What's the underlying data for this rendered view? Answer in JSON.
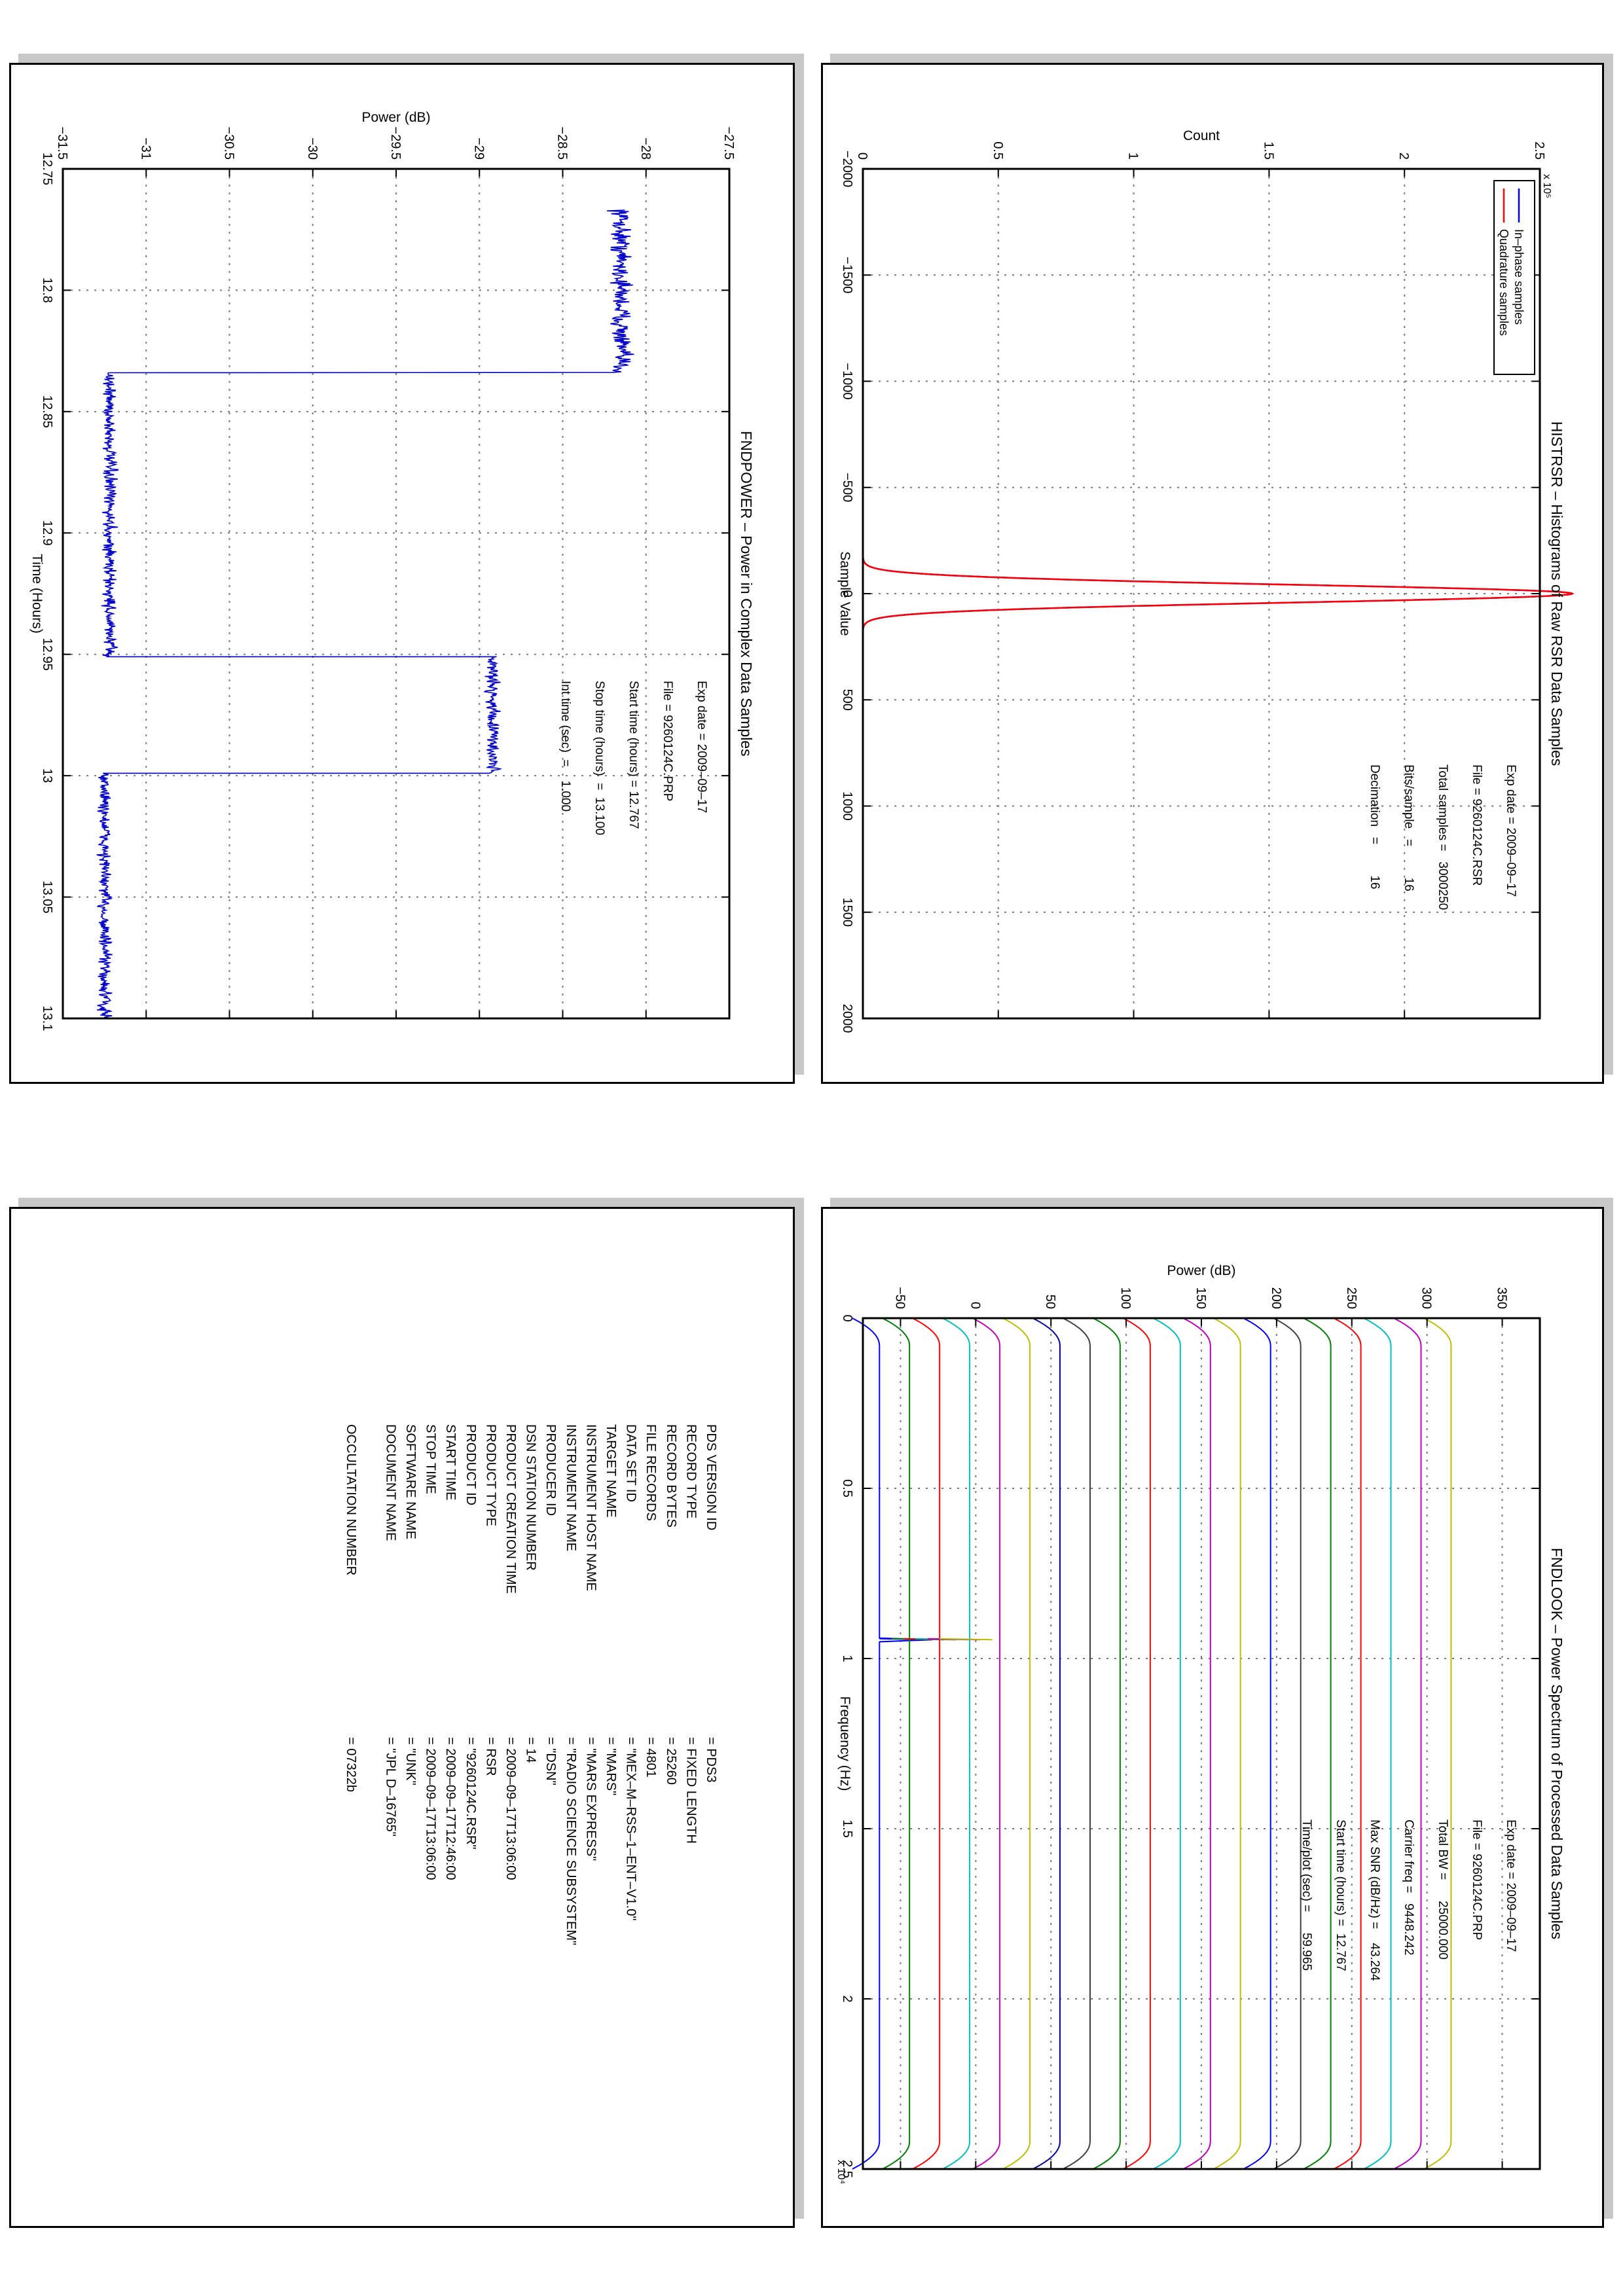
{
  "histrsr": {
    "title": "HISTRSR – Histograms of Raw RSR Data Samples",
    "xlabel": "Sample Value",
    "ylabel": "Count",
    "yexponent": "x 10⁵",
    "legend": [
      "In–phase samples",
      "Quadrature samples"
    ],
    "info": [
      "Exp date = 2009–09–17",
      "File = 9260124C.RSR",
      "Total samples =   3000250",
      "Bits/sample   =         16",
      "Decimation   =         16"
    ],
    "colors": {
      "inphase": "#0000ff",
      "quadrature": "#ff0000"
    }
  },
  "fndpower": {
    "title": "FNDPOWER – Power in Complex Data Samples",
    "xlabel": "Time (Hours)",
    "ylabel": "Power (dB)",
    "info": [
      "Exp date = 2009–09–17",
      "File = 9260124C.PRP",
      "Start time (hours) = 12.767",
      "Stop time (hours)  =  13.100",
      "Int time (sec)  =    1.000"
    ],
    "color": "#0000cc"
  },
  "fndlook": {
    "title": "FNDLOOK – Power Spectrum of Processed Data Samples",
    "xlabel": "Frequency (Hz)",
    "ylabel": "Power (dB)",
    "xexponent": "x 10⁴",
    "info": [
      "Exp date = 2009–09–17",
      "File = 9260124C.PRP",
      "Total BW =      25000.000",
      "Carrier freq =   9448.242",
      "Max SNR (dB/Hz) =    43.264",
      "Start time (hours) =  12.767",
      "Time/plot (sec) =      59.965"
    ]
  },
  "label": {
    "rows": [
      {
        "key": "PDS VERSION ID",
        "value": "= PDS3"
      },
      {
        "key": "RECORD TYPE",
        "value": "= FIXED LENGTH"
      },
      {
        "key": "RECORD BYTES",
        "value": "= 25260"
      },
      {
        "key": "FILE RECORDS",
        "value": "= 4801"
      },
      {
        "key": "DATA SET ID",
        "value": "= \"MEX–M–RSS–1–ENT–V1.0\""
      },
      {
        "key": "TARGET NAME",
        "value": "= \"MARS\""
      },
      {
        "key": "INSTRUMENT HOST NAME",
        "value": "= \"MARS EXPRESS\""
      },
      {
        "key": "INSTRUMENT NAME",
        "value": "= \"RADIO SCIENCE SUBSYSTEM\""
      },
      {
        "key": "PRODUCER ID",
        "value": "= \"DSN\""
      },
      {
        "key": "DSN STATION NUMBER",
        "value": "= 14"
      },
      {
        "key": "PRODUCT CREATION TIME",
        "value": "= 2009–09–17T13:06:00"
      },
      {
        "key": "PRODUCT TYPE",
        "value": "= RSR"
      },
      {
        "key": "PRODUCT ID",
        "value": "= \"9260124C.RSR\""
      },
      {
        "key": "START TIME",
        "value": "= 2009–09–17T12:46:00"
      },
      {
        "key": "STOP TIME",
        "value": "= 2009–09–17T13:06:00"
      },
      {
        "key": "SOFTWARE NAME",
        "value": "= \"UNK\""
      },
      {
        "key": "DOCUMENT NAME",
        "value": "= \"JPL D–16765\""
      }
    ],
    "occultation": {
      "key": "OCCULTATION NUMBER",
      "value": "= 07322b"
    }
  },
  "chart_data": [
    {
      "type": "line",
      "title": "HISTRSR – Histograms of Raw RSR Data Samples",
      "xlabel": "Sample Value",
      "ylabel": "Count",
      "xlim": [
        -2000,
        2000
      ],
      "ylim": [
        0,
        250000
      ],
      "xticks": [
        "−2000",
        "−1500",
        "−1000",
        "−500",
        "0",
        "500",
        "1000",
        "1500",
        "2000"
      ],
      "yticks": [
        "0",
        "0.5",
        "1",
        "1.5",
        "2",
        "2.5"
      ],
      "grid": true,
      "legend_position": "top-left",
      "series": [
        {
          "name": "In–phase samples",
          "shape": "gaussian",
          "peak_x": 0,
          "peak_count": 262000,
          "sigma": 42
        },
        {
          "name": "Quadrature samples",
          "shape": "gaussian",
          "peak_x": 0,
          "peak_count": 262000,
          "sigma": 42
        }
      ]
    },
    {
      "type": "line",
      "title": "FNDPOWER – Power in Complex Data Samples",
      "xlabel": "Time (Hours)",
      "ylabel": "Power (dB)",
      "xlim": [
        12.75,
        13.1
      ],
      "ylim": [
        -31.5,
        -27.5
      ],
      "xticks": [
        "12.75",
        "12.8",
        "12.85",
        "12.9",
        "12.95",
        "13",
        "13.05",
        "13.1"
      ],
      "yticks": [
        "−31.5",
        "−31",
        "−30.5",
        "−30",
        "−29.5",
        "−29",
        "−28.5",
        "−28",
        "−27.5"
      ],
      "grid": true,
      "segments": [
        {
          "t0": 12.767,
          "t1": 12.834,
          "level_db": -28.15
        },
        {
          "t0": 12.834,
          "t1": 12.951,
          "level_db": -31.22
        },
        {
          "t0": 12.951,
          "t1": 12.999,
          "level_db": -28.92
        },
        {
          "t0": 12.999,
          "t1": 13.1,
          "level_db": -31.25
        }
      ]
    },
    {
      "type": "line",
      "title": "FNDLOOK – Power Spectrum of Processed Data Samples",
      "xlabel": "Frequency (Hz)",
      "ylabel": "Power (dB)",
      "xlim": [
        0,
        25000
      ],
      "ylim": [
        -75,
        375
      ],
      "xticks": [
        "0",
        "0.5",
        "1",
        "1.5",
        "2",
        "2.5"
      ],
      "yticks": [
        "−50",
        "0",
        "50",
        "100",
        "150",
        "200",
        "250",
        "300",
        "350"
      ],
      "grid": true,
      "carrier_hz": 9448.242,
      "offset_db": 20,
      "series_count": 20,
      "base_db": -64,
      "spike_db": 35,
      "colors": [
        "#0000ff",
        "#008000",
        "#ff0000",
        "#00bfbf",
        "#bf00bf",
        "#bfbf00",
        "#0000aa",
        "#3f3f3f",
        "#008000",
        "#ff0000",
        "#00bfbf",
        "#bf00bf",
        "#bfbf00",
        "#0000ff",
        "#3f3f3f",
        "#008000",
        "#ff0000",
        "#00bfbf",
        "#bf00bf",
        "#bfbf00"
      ]
    }
  ]
}
